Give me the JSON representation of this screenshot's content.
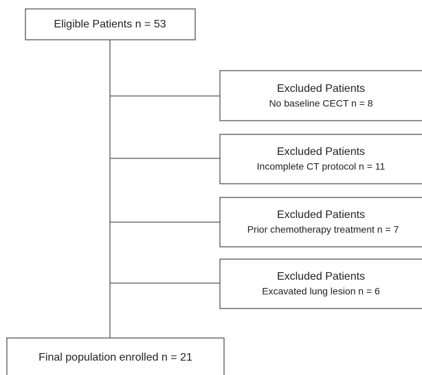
{
  "nodes": [
    {
      "label": "Eligible Patients n = 53"
    },
    {
      "label": "Excluded Patients",
      "detail": "No baseline CECT n = 8"
    },
    {
      "label": "Excluded Patients",
      "detail": "Incomplete CT protocol n = 11"
    },
    {
      "label": "Excluded Patients",
      "detail": "Prior chemotherapy treatment  n = 7"
    },
    {
      "label": "Excluded Patients",
      "detail": "Excavated lung lesion  n = 6"
    },
    {
      "label": "Final population enrolled n = 21"
    }
  ]
}
